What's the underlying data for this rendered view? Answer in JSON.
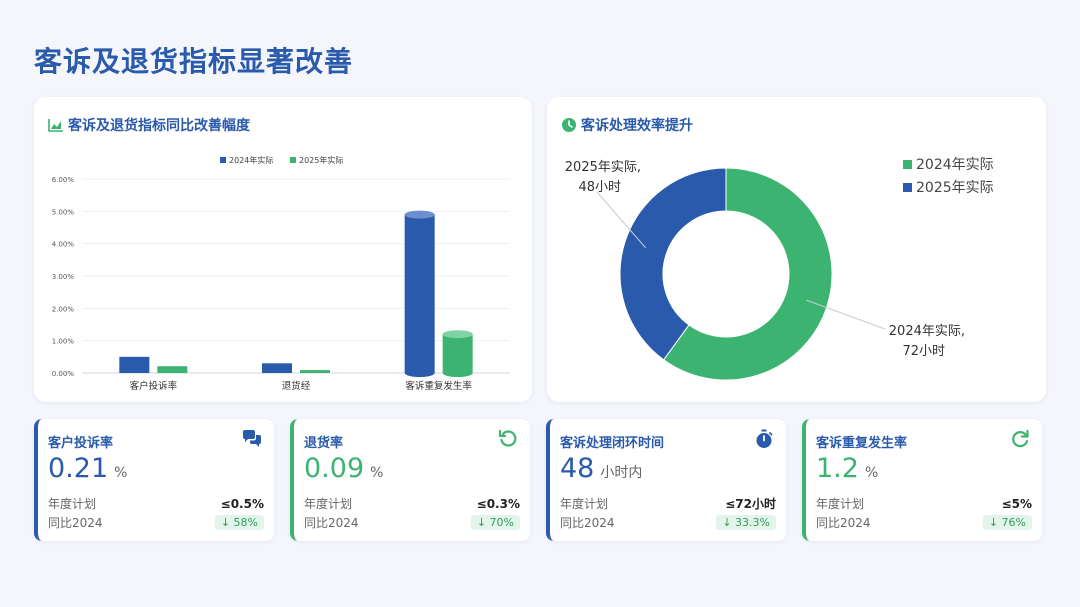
{
  "page_title": "客诉及退货指标显著改善",
  "bar_card": {
    "title": "客诉及退货指标同比改善幅度",
    "icon": "area-chart-icon"
  },
  "donut_card": {
    "title": "客诉处理效率提升",
    "icon": "clock-icon"
  },
  "chart_data": [
    {
      "type": "bar",
      "title": "客诉及退货指标同比改善幅度",
      "categories": [
        "客户投诉率",
        "退货经",
        "客诉重复发生率"
      ],
      "series": [
        {
          "name": "2024年实际",
          "values": [
            0.5,
            0.3,
            4.9
          ],
          "color": "#2a5aab"
        },
        {
          "name": "2025年实际",
          "values": [
            0.21,
            0.09,
            1.2
          ],
          "color": "#3cb371"
        }
      ],
      "yticks": [
        "0.00%",
        "1.00%",
        "2.00%",
        "3.00%",
        "4.00%",
        "5.00%",
        "6.00%"
      ],
      "ylim": [
        0,
        6
      ],
      "legend": "top-center",
      "grid": true
    },
    {
      "type": "pie",
      "title": "客诉处理效率提升",
      "slices": [
        {
          "name": "2024年实际",
          "value": 72,
          "label_line1": "2024年实际,",
          "label_line2": "72小时",
          "color": "#3cb371"
        },
        {
          "name": "2025年实际",
          "value": 48,
          "label_line1": "2025年实际,",
          "label_line2": "48小时",
          "color": "#2a5aab"
        }
      ],
      "legend": "top-right"
    }
  ],
  "kpis": [
    {
      "title": "客户投诉率",
      "value": "0.21",
      "unit": "%",
      "plan_label": "年度计划",
      "plan": "≤0.5%",
      "yoy_label": "同比2024",
      "change": "↓ 58%",
      "icon": "chat-bubbles-icon",
      "accent": "#2a5aab"
    },
    {
      "title": "退货率",
      "value": "0.09",
      "unit": "%",
      "plan_label": "年度计划",
      "plan": "≤0.3%",
      "yoy_label": "同比2024",
      "change": "↓ 70%",
      "icon": "undo-icon",
      "accent": "#3cb371"
    },
    {
      "title": "客诉处理闭环时间",
      "value": "48",
      "unit": "小时内",
      "plan_label": "年度计划",
      "plan": "≤72小时",
      "yoy_label": "同比2024",
      "change": "↓ 33.3%",
      "icon": "stopwatch-icon",
      "accent": "#2a5aab"
    },
    {
      "title": "客诉重复发生率",
      "value": "1.2",
      "unit": "%",
      "plan_label": "年度计划",
      "plan": "≤5%",
      "yoy_label": "同比2024",
      "change": "↓ 76%",
      "icon": "refresh-icon",
      "accent": "#3cb371"
    }
  ]
}
